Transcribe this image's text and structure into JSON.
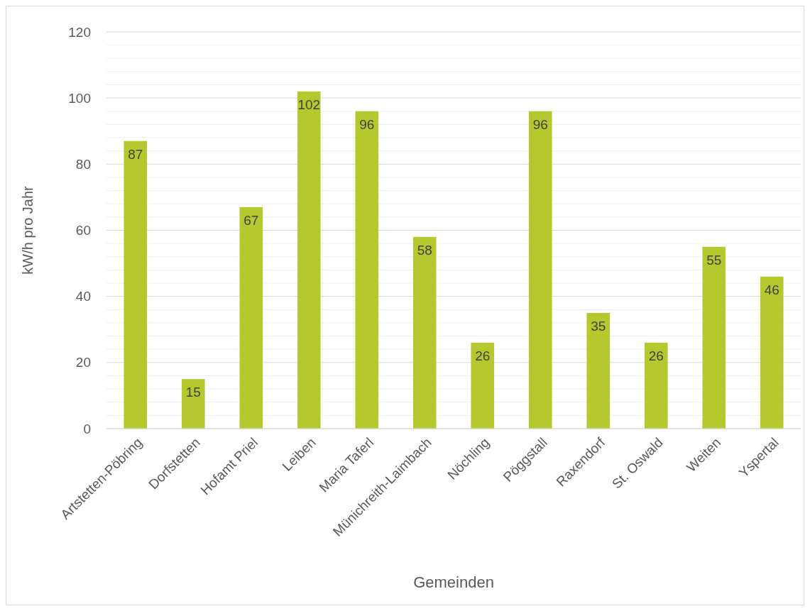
{
  "chart_data": {
    "type": "bar",
    "xlabel": "Gemeinden",
    "ylabel": "kW/h pro Jahr",
    "categories": [
      "Artstetten-Pöbring",
      "Dorfstetten",
      "Hofamt Priel",
      "Leiben",
      "Maria Taferl",
      "Münichreith-Laimbach",
      "Nöchling",
      "Pöggstall",
      "Raxendorf",
      "St. Oswald",
      "Weiten",
      "Yspertal"
    ],
    "values": [
      87,
      15,
      67,
      102,
      96,
      58,
      26,
      96,
      35,
      26,
      55,
      46
    ],
    "color": "#b5c92f",
    "data_labels": true,
    "grid": "y",
    "ylim": [
      0,
      120
    ],
    "yticks": [
      0,
      {
        "value": 4,
        "label": null
      },
      {
        "value": 8,
        "label": null
      },
      {
        "value": 12,
        "label": null
      },
      {
        "value": 16,
        "label": null
      },
      20,
      {
        "value": 24,
        "label": null
      },
      {
        "value": 28,
        "label": null
      },
      {
        "value": 32,
        "label": null
      },
      {
        "value": 36,
        "label": null
      },
      40,
      {
        "value": 44,
        "label": null
      },
      {
        "value": 48,
        "label": null
      },
      {
        "value": 52,
        "label": null
      },
      {
        "value": 56,
        "label": null
      },
      60,
      {
        "value": 64,
        "label": null
      },
      {
        "value": 68,
        "label": null
      },
      {
        "value": 72,
        "label": null
      },
      {
        "value": 76,
        "label": null
      },
      80,
      {
        "value": 84,
        "label": null
      },
      {
        "value": 88,
        "label": null
      },
      {
        "value": 92,
        "label": null
      },
      {
        "value": 96,
        "label": null
      },
      100,
      {
        "value": 104,
        "label": null
      },
      {
        "value": 108,
        "label": null
      },
      {
        "value": 112,
        "label": null
      },
      {
        "value": 116,
        "label": null
      },
      120
    ]
  }
}
